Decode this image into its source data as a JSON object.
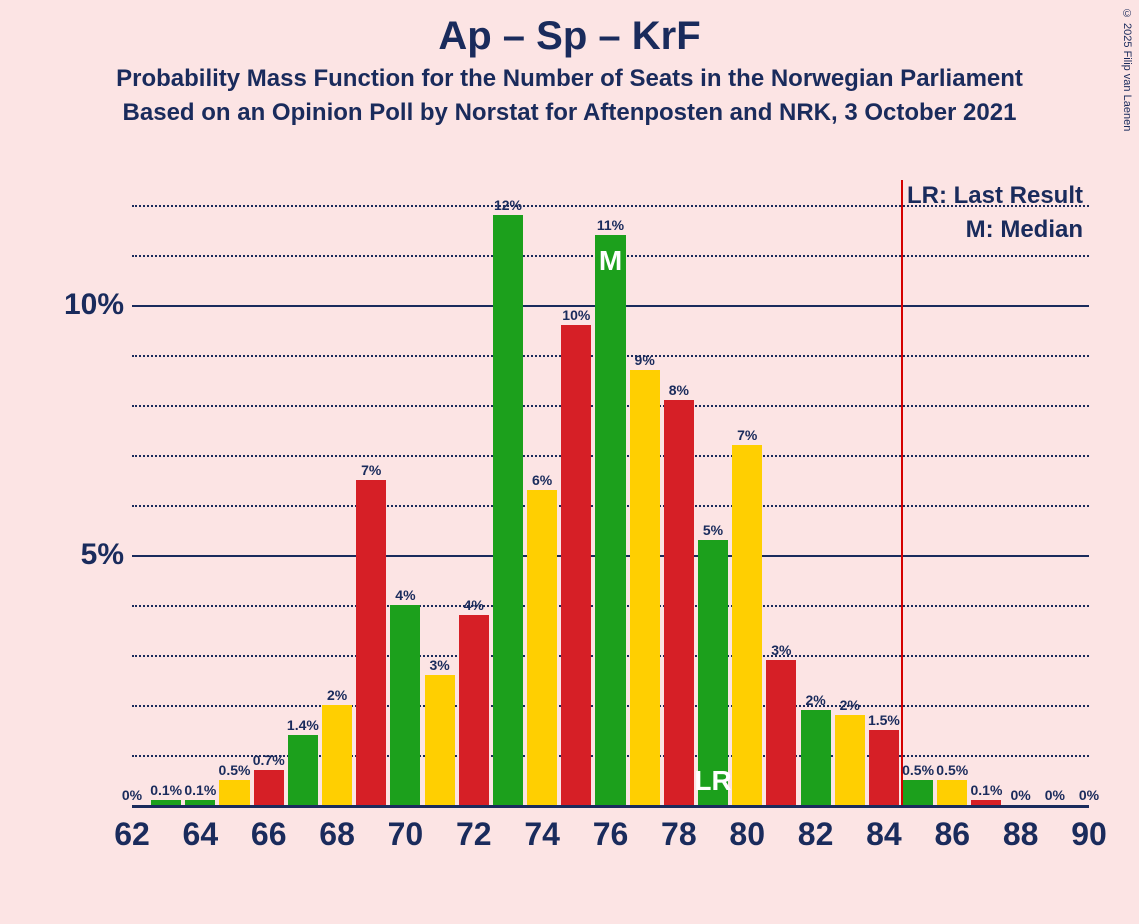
{
  "copyright": "© 2025 Filip van Laenen",
  "titles": {
    "main": "Ap – Sp – KrF",
    "sub1": "Probability Mass Function for the Number of Seats in the Norwegian Parliament",
    "sub2": "Based on an Opinion Poll by Norstat for Aftenposten and NRK, 3 October 2021"
  },
  "annotations": {
    "lr": "LR: Last Result",
    "m": "M: Median"
  },
  "chart": {
    "type": "bar",
    "background_color": "#fce4e4",
    "text_color": "#1a2b5c",
    "colors": {
      "red": "#d61f26",
      "green": "#1ca01c",
      "yellow": "#ffcf01"
    },
    "x_axis": {
      "min": 62,
      "max": 90,
      "tick_step": 2,
      "label_fontsize": 32
    },
    "y_axis": {
      "max_pct": 12.5,
      "major_ticks": [
        5,
        10
      ],
      "minor_tick_step": 1,
      "tick_label_fontsize": 30
    },
    "lr_line_seat": 85,
    "median_seat": 76,
    "lr_label_on_bar_seat": 79,
    "title_fontsize_main": 40,
    "title_fontsize_sub": 24,
    "bars": [
      {
        "seat": 62,
        "pct": 0.0,
        "label": "0%",
        "color": "red"
      },
      {
        "seat": 63,
        "pct": 0.1,
        "label": "0.1%",
        "color": "green"
      },
      {
        "seat": 64,
        "pct": 0.1,
        "label": "0.1%",
        "color": "green"
      },
      {
        "seat": 65,
        "pct": 0.5,
        "label": "0.5%",
        "color": "yellow"
      },
      {
        "seat": 66,
        "pct": 0.7,
        "label": "0.7%",
        "color": "red"
      },
      {
        "seat": 67,
        "pct": 1.4,
        "label": "1.4%",
        "color": "green"
      },
      {
        "seat": 68,
        "pct": 2.0,
        "label": "2%",
        "color": "yellow"
      },
      {
        "seat": 69,
        "pct": 6.5,
        "label": "7%",
        "color": "red"
      },
      {
        "seat": 70,
        "pct": 4.0,
        "label": "4%",
        "color": "green"
      },
      {
        "seat": 71,
        "pct": 2.6,
        "label": "3%",
        "color": "yellow"
      },
      {
        "seat": 72,
        "pct": 3.8,
        "label": "4%",
        "color": "red"
      },
      {
        "seat": 73,
        "pct": 11.8,
        "label": "12%",
        "color": "green"
      },
      {
        "seat": 74,
        "pct": 6.3,
        "label": "6%",
        "color": "yellow"
      },
      {
        "seat": 75,
        "pct": 9.6,
        "label": "10%",
        "color": "red"
      },
      {
        "seat": 76,
        "pct": 11.4,
        "label": "11%",
        "color": "green"
      },
      {
        "seat": 77,
        "pct": 8.7,
        "label": "9%",
        "color": "yellow"
      },
      {
        "seat": 78,
        "pct": 8.1,
        "label": "8%",
        "color": "red"
      },
      {
        "seat": 79,
        "pct": 5.3,
        "label": "5%",
        "color": "green"
      },
      {
        "seat": 80,
        "pct": 7.2,
        "label": "7%",
        "color": "yellow"
      },
      {
        "seat": 81,
        "pct": 2.9,
        "label": "3%",
        "color": "red"
      },
      {
        "seat": 82,
        "pct": 1.9,
        "label": "2%",
        "color": "green"
      },
      {
        "seat": 83,
        "pct": 1.8,
        "label": "2%",
        "color": "yellow"
      },
      {
        "seat": 84,
        "pct": 1.5,
        "label": "1.5%",
        "color": "red"
      },
      {
        "seat": 85,
        "pct": 0.5,
        "label": "0.5%",
        "color": "green"
      },
      {
        "seat": 86,
        "pct": 0.5,
        "label": "0.5%",
        "color": "yellow"
      },
      {
        "seat": 87,
        "pct": 0.1,
        "label": "0.1%",
        "color": "red"
      },
      {
        "seat": 88,
        "pct": 0.0,
        "label": "0%",
        "color": "green"
      },
      {
        "seat": 89,
        "pct": 0.0,
        "label": "0%",
        "color": "yellow"
      },
      {
        "seat": 90,
        "pct": 0.0,
        "label": "0%",
        "color": "red"
      }
    ],
    "inscriptions": {
      "M": "M",
      "LR": "LR"
    }
  }
}
